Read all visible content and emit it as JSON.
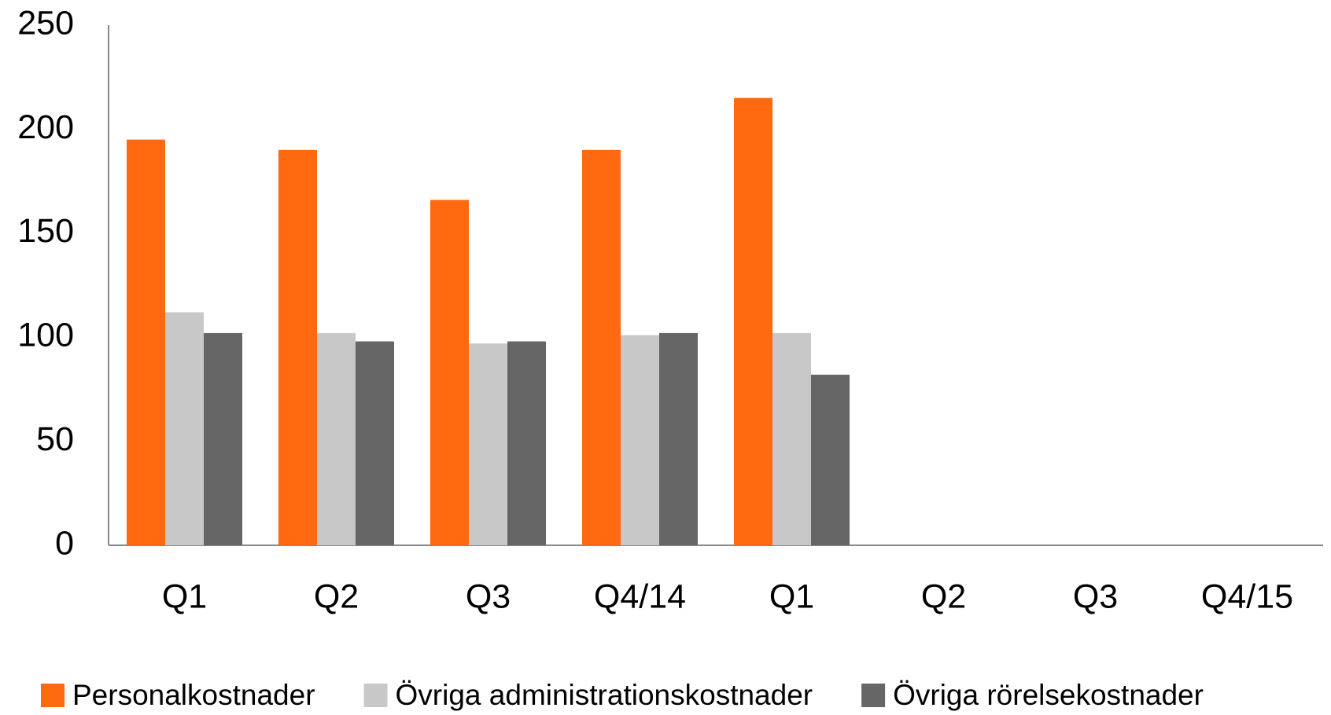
{
  "chart_data": {
    "type": "bar",
    "categories": [
      "Q1",
      "Q2",
      "Q3",
      "Q4/14",
      "Q1",
      "Q2",
      "Q3",
      "Q4/15"
    ],
    "series": [
      {
        "name": "Personalkostnader",
        "color": "#ff6a10",
        "values": [
          195,
          190,
          166,
          190,
          215,
          null,
          null,
          null
        ]
      },
      {
        "name": "Övriga administrationskostnader",
        "color": "#c8c8c8",
        "values": [
          112,
          102,
          97,
          101,
          102,
          null,
          null,
          null
        ]
      },
      {
        "name": "Övriga rörelsekostnader",
        "color": "#666666",
        "values": [
          102,
          98,
          98,
          102,
          82,
          null,
          null,
          null
        ]
      }
    ],
    "ylim": [
      0,
      250
    ],
    "yticks": [
      0,
      50,
      100,
      150,
      200,
      250
    ],
    "grid": false,
    "legend": "bottom"
  }
}
